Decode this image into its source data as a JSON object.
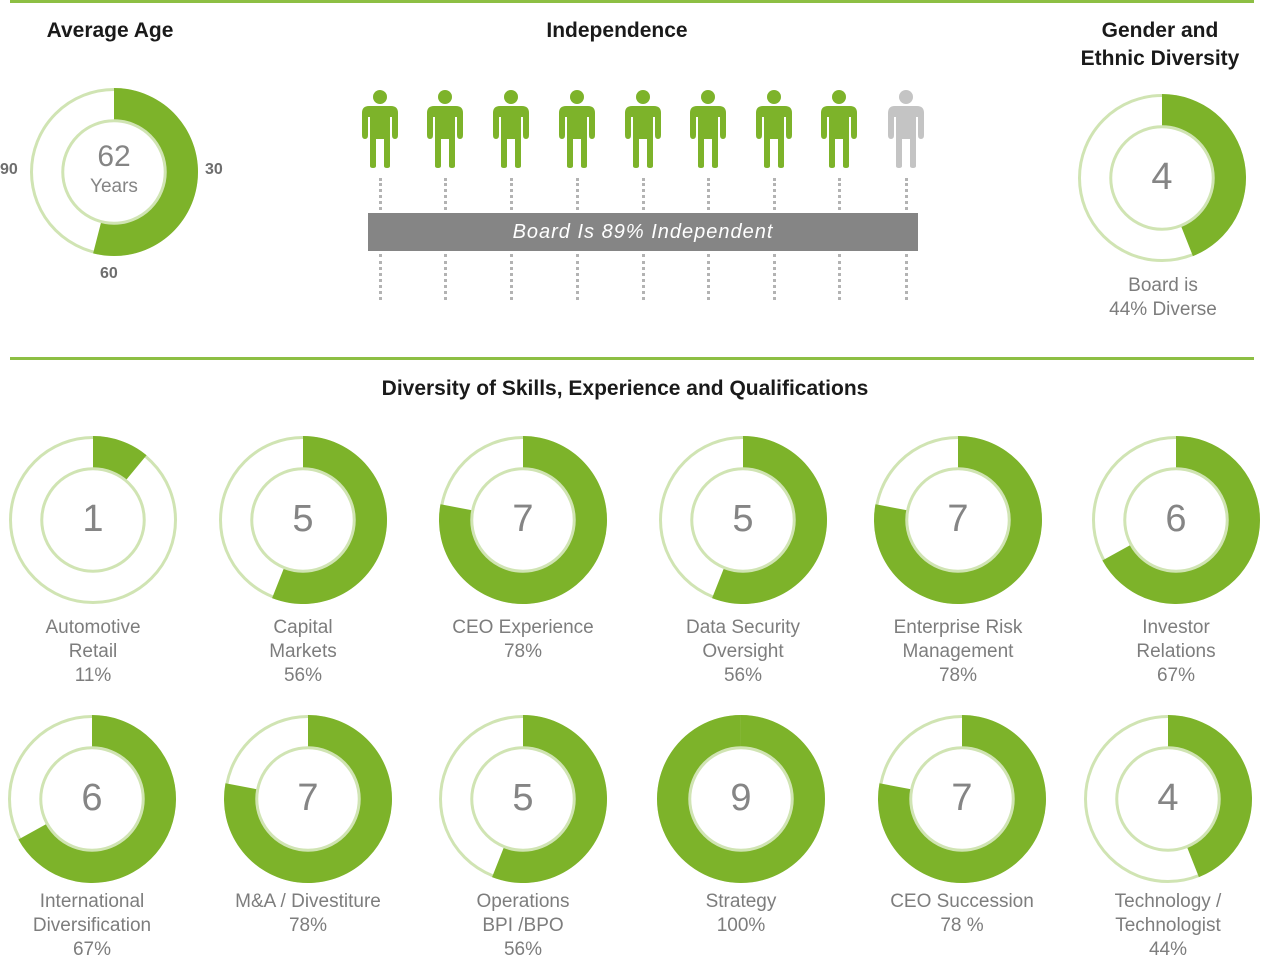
{
  "colors": {
    "accent": "#7db32a",
    "light": "#d0e4b3",
    "gray": "#c4c4c4",
    "banner": "#858585"
  },
  "average_age": {
    "title": "Average Age",
    "center_value": "62",
    "center_unit": "Years",
    "scale_labels": {
      "left": "90",
      "right": "30",
      "bottom": "60"
    }
  },
  "independence": {
    "title": "Independence",
    "banner": "Board Is 89% Independent",
    "people": [
      {
        "icon": "person-icon",
        "independent": true
      },
      {
        "icon": "person-icon",
        "independent": true
      },
      {
        "icon": "person-icon",
        "independent": true
      },
      {
        "icon": "person-icon",
        "independent": true
      },
      {
        "icon": "person-icon",
        "independent": true
      },
      {
        "icon": "person-icon",
        "independent": true
      },
      {
        "icon": "person-icon",
        "independent": true
      },
      {
        "icon": "person-icon",
        "independent": true
      },
      {
        "icon": "person-icon",
        "independent": false
      }
    ]
  },
  "gender_diversity": {
    "title_line1": "Gender and",
    "title_line2": "Ethnic Diversity",
    "center_value": "4",
    "caption_line1": "Board is",
    "caption_line2": "44% Diverse"
  },
  "skills": {
    "title": "Diversity of Skills, Experience and Qualifications"
  },
  "chart_data": [
    {
      "type": "pie",
      "title": "Average Age",
      "center_value": 62,
      "unit": "Years",
      "fraction": 0.54
    },
    {
      "type": "pie",
      "title": "Gender and Ethnic Diversity",
      "center_value": 4,
      "percent": 44
    },
    {
      "type": "pie",
      "title": "Diversity of Skills, Experience and Qualifications",
      "items": [
        {
          "lines": [
            "Automotive",
            "Retail",
            "11%"
          ],
          "count": 1,
          "percent": 11
        },
        {
          "lines": [
            "Capital",
            "Markets",
            "56%"
          ],
          "count": 5,
          "percent": 56
        },
        {
          "lines": [
            "CEO Experience",
            "78%"
          ],
          "count": 7,
          "percent": 78
        },
        {
          "lines": [
            "Data Security",
            "Oversight",
            "56%"
          ],
          "count": 5,
          "percent": 56
        },
        {
          "lines": [
            "Enterprise Risk",
            "Management",
            "78%"
          ],
          "count": 7,
          "percent": 78
        },
        {
          "lines": [
            "Investor",
            "Relations",
            "67%"
          ],
          "count": 6,
          "percent": 67
        },
        {
          "lines": [
            "International",
            "Diversification",
            "67%"
          ],
          "count": 6,
          "percent": 67
        },
        {
          "lines": [
            "M&A / Divestiture",
            "78%"
          ],
          "count": 7,
          "percent": 78
        },
        {
          "lines": [
            "Operations",
            "BPI /BPO",
            "56%"
          ],
          "count": 5,
          "percent": 56
        },
        {
          "lines": [
            "Strategy",
            "100%"
          ],
          "count": 9,
          "percent": 100
        },
        {
          "lines": [
            "CEO Succession",
            "78 %"
          ],
          "count": 7,
          "percent": 78
        },
        {
          "lines": [
            "Technology /",
            "Technologist",
            "44%"
          ],
          "count": 4,
          "percent": 44
        }
      ]
    }
  ]
}
